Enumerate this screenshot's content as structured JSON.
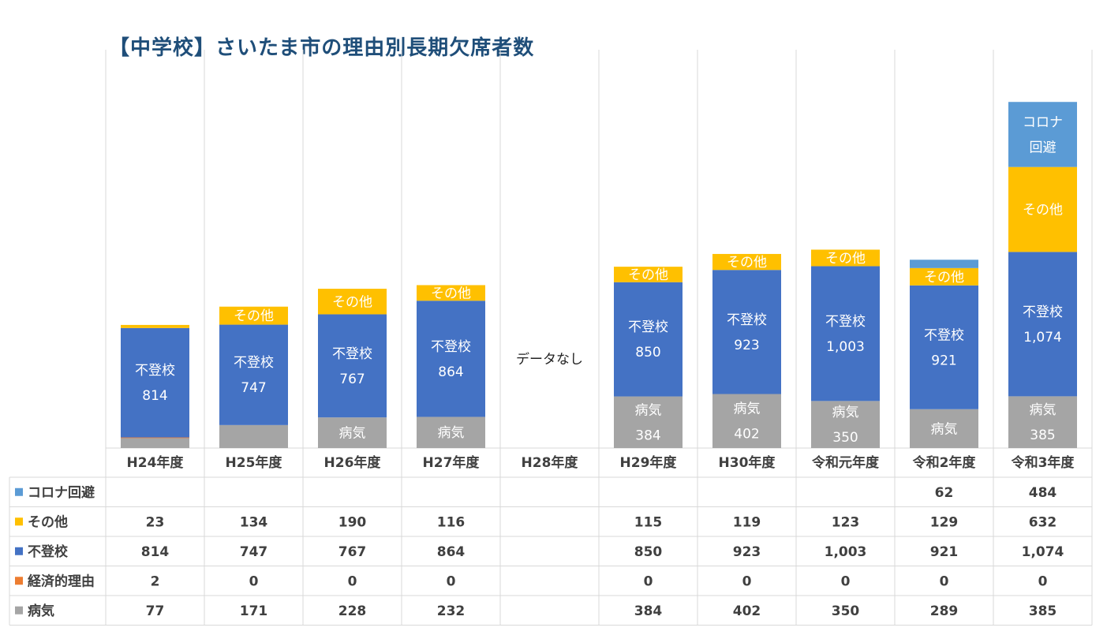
{
  "chart_data": {
    "type": "bar",
    "stacked": true,
    "title": "【中学校】さいたま市の理由別長期欠席者数",
    "categories": [
      "H24年度",
      "H25年度",
      "H26年度",
      "H27年度",
      "H28年度",
      "H29年度",
      "H30年度",
      "令和元年度",
      "令和2年度",
      "令和3年度"
    ],
    "series": [
      {
        "name": "病気",
        "color": "#a5a5a5",
        "values": [
          77,
          171,
          228,
          232,
          null,
          384,
          402,
          350,
          289,
          385
        ]
      },
      {
        "name": "経済的理由",
        "color": "#ed7d31",
        "values": [
          2,
          0,
          0,
          0,
          null,
          0,
          0,
          0,
          0,
          0
        ]
      },
      {
        "name": "不登校",
        "color": "#4472c4",
        "values": [
          814,
          747,
          767,
          864,
          null,
          850,
          923,
          1003,
          921,
          1074
        ]
      },
      {
        "name": "その他",
        "color": "#ffc000",
        "values": [
          23,
          134,
          190,
          116,
          null,
          115,
          119,
          123,
          129,
          632
        ]
      },
      {
        "name": "コロナ回避",
        "color": "#5b9bd5",
        "values": [
          null,
          null,
          null,
          null,
          null,
          null,
          null,
          null,
          62,
          484
        ]
      }
    ],
    "table_rows_order": [
      "コロナ回避",
      "その他",
      "不登校",
      "経済的理由",
      "病気"
    ],
    "table_display": {
      "コロナ回避": [
        "",
        "",
        "",
        "",
        "",
        "",
        "",
        "",
        "62",
        "484"
      ],
      "その他": [
        "23",
        "134",
        "190",
        "116",
        "",
        "115",
        "119",
        "123",
        "129",
        "632"
      ],
      "不登校": [
        "814",
        "747",
        "767",
        "864",
        "",
        "850",
        "923",
        "1,003",
        "921",
        "1,074"
      ],
      "経済的理由": [
        "2",
        "0",
        "0",
        "0",
        "",
        "0",
        "0",
        "0",
        "0",
        "0"
      ],
      "病気": [
        "77",
        "171",
        "228",
        "232",
        "",
        "384",
        "402",
        "350",
        "289",
        "385"
      ]
    },
    "bar_labels": [
      [
        {
          "s": "不登校",
          "lines": [
            "不登校",
            "814"
          ]
        }
      ],
      [
        {
          "s": "その他",
          "lines": [
            "その他"
          ]
        },
        {
          "s": "不登校",
          "lines": [
            "不登校",
            "747"
          ]
        }
      ],
      [
        {
          "s": "病気",
          "lines": [
            "病気"
          ]
        },
        {
          "s": "その他",
          "lines": [
            "その他"
          ]
        },
        {
          "s": "不登校",
          "lines": [
            "不登校",
            "767"
          ]
        }
      ],
      [
        {
          "s": "病気",
          "lines": [
            "病気"
          ]
        },
        {
          "s": "その他",
          "lines": [
            "その他"
          ]
        },
        {
          "s": "不登校",
          "lines": [
            "不登校",
            "864"
          ]
        }
      ],
      [],
      [
        {
          "s": "病気",
          "lines": [
            "病気",
            "384"
          ]
        },
        {
          "s": "その他",
          "lines": [
            "その他"
          ]
        },
        {
          "s": "不登校",
          "lines": [
            "不登校",
            "850"
          ]
        }
      ],
      [
        {
          "s": "病気",
          "lines": [
            "病気",
            "402"
          ]
        },
        {
          "s": "その他",
          "lines": [
            "その他"
          ]
        },
        {
          "s": "不登校",
          "lines": [
            "不登校",
            "923"
          ]
        }
      ],
      [
        {
          "s": "病気",
          "lines": [
            "病気",
            "350"
          ]
        },
        {
          "s": "その他",
          "lines": [
            "その他"
          ]
        },
        {
          "s": "不登校",
          "lines": [
            "不登校",
            "1,003"
          ]
        }
      ],
      [
        {
          "s": "病気",
          "lines": [
            "病気"
          ]
        },
        {
          "s": "その他",
          "lines": [
            "その他"
          ]
        },
        {
          "s": "不登校",
          "lines": [
            "不登校",
            "921"
          ]
        }
      ],
      [
        {
          "s": "病気",
          "lines": [
            "病気",
            "385"
          ]
        },
        {
          "s": "その他",
          "lines": [
            "その他"
          ]
        },
        {
          "s": "不登校",
          "lines": [
            "不登校",
            "1,074"
          ]
        },
        {
          "s": "コロナ回避",
          "lines": [
            "コロナ",
            "回避"
          ]
        }
      ]
    ],
    "annotations": [
      {
        "category": "H28年度",
        "text": "データなし"
      }
    ],
    "legend_position": "data-table",
    "grid": "vertical"
  }
}
